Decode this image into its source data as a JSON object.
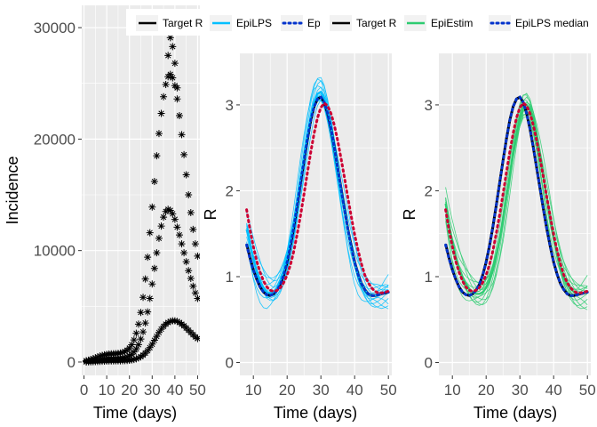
{
  "legend": [
    {
      "label": "Target R",
      "color": "#000000",
      "style": "solid"
    },
    {
      "label": "EpiLPS",
      "color": "#00bfff",
      "style": "solid"
    },
    {
      "label": "Ep",
      "color": "#0033cc",
      "style": "dotted"
    },
    {
      "label": "Target R",
      "color": "#000000",
      "style": "solid"
    },
    {
      "label": "EpiEstim",
      "color": "#2ecc71",
      "style": "solid"
    },
    {
      "label": "EpiLPS median",
      "color": "#0033cc",
      "style": "dotted"
    }
  ],
  "chart_data": [
    {
      "type": "scatter",
      "title": "",
      "xlabel": "Time (days)",
      "ylabel": "Incidence",
      "xlim": [
        -1,
        51
      ],
      "ylim": [
        -1200,
        32000
      ],
      "xticks": [
        0,
        10,
        20,
        30,
        40,
        50
      ],
      "xtick_labels": [
        "0",
        "10",
        "20",
        "30",
        "40",
        "50"
      ],
      "yticks": [
        0,
        10000,
        20000,
        30000
      ],
      "ytick_labels": [
        "0",
        "10000",
        "20000",
        "30000"
      ],
      "grid": true,
      "marker": "asterisk",
      "color": "#000000",
      "series": [
        {
          "x": [
            1,
            2,
            3,
            4,
            5,
            6,
            7,
            8,
            9,
            10,
            11,
            12,
            13,
            14,
            15,
            16,
            17,
            18,
            19,
            20,
            21,
            22,
            23,
            24,
            25,
            26,
            27,
            28,
            29,
            30,
            31,
            32,
            33,
            34,
            35,
            36,
            37,
            38,
            39,
            40,
            41,
            42,
            43,
            44,
            45,
            46,
            47,
            48,
            49,
            50
          ],
          "values": [
            10,
            15,
            20,
            28,
            35,
            45,
            55,
            65,
            75,
            85,
            92,
            98,
            100,
            102,
            104,
            108,
            115,
            125,
            140,
            160,
            190,
            230,
            290,
            370,
            480,
            620,
            800,
            1020,
            1290,
            1600,
            1950,
            2300,
            2650,
            2950,
            3200,
            3400,
            3550,
            3650,
            3700,
            3700,
            3650,
            3550,
            3400,
            3250,
            3050,
            2850,
            2650,
            2450,
            2250,
            2100
          ]
        },
        {
          "x": [
            1,
            2,
            3,
            4,
            5,
            6,
            7,
            8,
            9,
            10,
            11,
            12,
            13,
            14,
            15,
            16,
            17,
            18,
            19,
            20,
            21,
            22,
            23,
            24,
            25,
            26,
            27,
            28,
            29,
            30,
            31,
            32,
            33,
            34,
            35,
            36,
            37,
            38,
            39,
            40,
            41,
            42,
            43,
            44,
            45,
            46,
            47,
            48,
            49,
            50
          ],
          "values": [
            40,
            60,
            85,
            110,
            140,
            175,
            210,
            240,
            265,
            285,
            300,
            310,
            315,
            320,
            330,
            345,
            370,
            410,
            470,
            560,
            700,
            900,
            1180,
            1560,
            2060,
            2700,
            3500,
            4500,
            5700,
            7000,
            8400,
            9800,
            11100,
            12200,
            13000,
            13500,
            13700,
            13600,
            13300,
            12800,
            12100,
            11400,
            10600,
            9800,
            9000,
            8200,
            7500,
            6800,
            6200,
            5700
          ]
        },
        {
          "x": [
            1,
            2,
            3,
            4,
            5,
            6,
            7,
            8,
            9,
            10,
            11,
            12,
            13,
            14,
            15,
            16,
            17,
            18,
            19,
            20,
            21,
            22,
            23,
            24,
            25,
            26,
            27,
            28,
            29,
            30,
            31,
            32,
            33,
            34,
            35,
            36,
            37,
            38,
            39,
            40,
            41,
            42,
            43,
            44,
            45,
            46,
            47,
            48,
            49,
            50
          ],
          "values": [
            120,
            170,
            230,
            300,
            380,
            460,
            540,
            600,
            650,
            690,
            720,
            735,
            745,
            760,
            780,
            810,
            860,
            940,
            1060,
            1250,
            1550,
            1980,
            2580,
            3400,
            4450,
            5800,
            7450,
            9400,
            11600,
            13900,
            16200,
            18500,
            20500,
            22300,
            23800,
            24900,
            25600,
            25800,
            25500,
            24800,
            23600,
            22100,
            20400,
            18600,
            16800,
            15000,
            13400,
            11900,
            10600,
            9500
          ]
        },
        {
          "x": [
            37,
            38,
            39,
            40,
            41
          ],
          "values": [
            27500,
            29100,
            28300,
            26800,
            24600
          ]
        }
      ]
    },
    {
      "type": "line",
      "title": "",
      "xlabel": "Time (days)",
      "ylabel": "R",
      "xlim": [
        6,
        51
      ],
      "ylim": [
        -0.15,
        3.6
      ],
      "xticks": [
        10,
        20,
        30,
        40,
        50
      ],
      "xtick_labels": [
        "10",
        "20",
        "30",
        "40",
        "50"
      ],
      "yticks": [
        0,
        1,
        2,
        3
      ],
      "ytick_labels": [
        "0",
        "1",
        "2",
        "3"
      ],
      "grid": true,
      "x": [
        8,
        9,
        10,
        11,
        12,
        13,
        14,
        15,
        16,
        17,
        18,
        19,
        20,
        21,
        22,
        23,
        24,
        25,
        26,
        27,
        28,
        29,
        30,
        31,
        32,
        33,
        34,
        35,
        36,
        37,
        38,
        39,
        40,
        41,
        42,
        43,
        44,
        45,
        46,
        47,
        48,
        49,
        50
      ],
      "series": [
        {
          "name": "Target R",
          "color": "#000000",
          "style": "solid",
          "values": [
            1.38,
            1.22,
            1.08,
            0.97,
            0.88,
            0.82,
            0.79,
            0.78,
            0.8,
            0.84,
            0.91,
            1.02,
            1.17,
            1.36,
            1.58,
            1.83,
            2.09,
            2.35,
            2.6,
            2.82,
            2.98,
            3.07,
            3.09,
            3.03,
            2.9,
            2.72,
            2.5,
            2.26,
            2.02,
            1.78,
            1.55,
            1.35,
            1.17,
            1.03,
            0.92,
            0.85,
            0.8,
            0.78,
            0.78,
            0.79,
            0.8,
            0.81,
            0.82
          ]
        },
        {
          "name": "EpiLPS",
          "color": "#00bfff",
          "style": "solid",
          "values": [
            1.55,
            1.38,
            1.2,
            1.06,
            0.95,
            0.87,
            0.82,
            0.81,
            0.82,
            0.87,
            0.95,
            1.06,
            1.21,
            1.4,
            1.62,
            1.87,
            2.14,
            2.4,
            2.65,
            2.87,
            3.04,
            3.13,
            3.15,
            3.08,
            2.93,
            2.73,
            2.5,
            2.25,
            2.0,
            1.76,
            1.53,
            1.33,
            1.16,
            1.02,
            0.92,
            0.85,
            0.8,
            0.78,
            0.78,
            0.79,
            0.8,
            0.82,
            0.83
          ]
        },
        {
          "name": "EpiLPS median",
          "color": "#0033cc",
          "style": "dotted",
          "values": [
            1.37,
            1.21,
            1.08,
            0.97,
            0.88,
            0.82,
            0.79,
            0.78,
            0.8,
            0.84,
            0.91,
            1.02,
            1.17,
            1.36,
            1.58,
            1.83,
            2.09,
            2.35,
            2.6,
            2.82,
            2.98,
            3.07,
            3.09,
            3.03,
            2.9,
            2.72,
            2.5,
            2.26,
            2.02,
            1.78,
            1.55,
            1.35,
            1.17,
            1.03,
            0.92,
            0.85,
            0.8,
            0.78,
            0.78,
            0.79,
            0.8,
            0.81,
            0.82
          ]
        },
        {
          "color": "#cc0033",
          "style": "dotted",
          "values": [
            1.78,
            1.55,
            1.35,
            1.18,
            1.05,
            0.95,
            0.88,
            0.84,
            0.83,
            0.84,
            0.87,
            0.93,
            1.02,
            1.14,
            1.3,
            1.5,
            1.72,
            1.96,
            2.21,
            2.45,
            2.67,
            2.85,
            2.97,
            3.02,
            2.99,
            2.9,
            2.76,
            2.58,
            2.37,
            2.15,
            1.92,
            1.7,
            1.49,
            1.31,
            1.15,
            1.02,
            0.93,
            0.87,
            0.83,
            0.81,
            0.81,
            0.82,
            0.83
          ]
        }
      ]
    },
    {
      "type": "line",
      "title": "",
      "xlabel": "Time (days)",
      "ylabel": "R",
      "xlim": [
        6,
        51
      ],
      "ylim": [
        -0.15,
        3.6
      ],
      "xticks": [
        10,
        20,
        30,
        40,
        50
      ],
      "xtick_labels": [
        "10",
        "20",
        "30",
        "40",
        "50"
      ],
      "yticks": [
        0,
        1,
        2,
        3
      ],
      "ytick_labels": [
        "0",
        "1",
        "2",
        "3"
      ],
      "grid": true,
      "x": [
        8,
        9,
        10,
        11,
        12,
        13,
        14,
        15,
        16,
        17,
        18,
        19,
        20,
        21,
        22,
        23,
        24,
        25,
        26,
        27,
        28,
        29,
        30,
        31,
        32,
        33,
        34,
        35,
        36,
        37,
        38,
        39,
        40,
        41,
        42,
        43,
        44,
        45,
        46,
        47,
        48,
        49,
        50
      ],
      "series": [
        {
          "name": "Target R",
          "color": "#000000",
          "style": "solid",
          "values": [
            1.38,
            1.22,
            1.08,
            0.97,
            0.88,
            0.82,
            0.79,
            0.78,
            0.8,
            0.84,
            0.91,
            1.02,
            1.17,
            1.36,
            1.58,
            1.83,
            2.09,
            2.35,
            2.6,
            2.82,
            2.98,
            3.07,
            3.09,
            3.03,
            2.9,
            2.72,
            2.5,
            2.26,
            2.02,
            1.78,
            1.55,
            1.35,
            1.17,
            1.03,
            0.92,
            0.85,
            0.8,
            0.78,
            0.78,
            0.79,
            0.8,
            0.81,
            0.82
          ]
        },
        {
          "name": "EpiEstim",
          "color": "#2ecc71",
          "style": "solid",
          "values": [
            1.85,
            1.6,
            1.4,
            1.24,
            1.1,
            1.0,
            0.92,
            0.86,
            0.82,
            0.8,
            0.8,
            0.82,
            0.87,
            0.95,
            1.07,
            1.23,
            1.43,
            1.66,
            1.92,
            2.18,
            2.44,
            2.67,
            2.85,
            2.97,
            3.0,
            2.95,
            2.82,
            2.63,
            2.4,
            2.16,
            1.91,
            1.67,
            1.45,
            1.27,
            1.12,
            1.0,
            0.92,
            0.86,
            0.82,
            0.8,
            0.8,
            0.81,
            0.82
          ]
        },
        {
          "name": "EpiLPS median",
          "color": "#0033cc",
          "style": "dotted",
          "values": [
            1.37,
            1.21,
            1.08,
            0.97,
            0.88,
            0.82,
            0.79,
            0.78,
            0.8,
            0.84,
            0.91,
            1.02,
            1.17,
            1.36,
            1.58,
            1.83,
            2.09,
            2.35,
            2.6,
            2.82,
            2.98,
            3.07,
            3.09,
            3.03,
            2.9,
            2.72,
            2.5,
            2.26,
            2.02,
            1.78,
            1.55,
            1.35,
            1.17,
            1.03,
            0.92,
            0.85,
            0.8,
            0.78,
            0.78,
            0.79,
            0.8,
            0.81,
            0.82
          ]
        },
        {
          "color": "#cc0033",
          "style": "dotted",
          "values": [
            1.78,
            1.55,
            1.35,
            1.18,
            1.05,
            0.95,
            0.88,
            0.84,
            0.83,
            0.84,
            0.87,
            0.93,
            1.02,
            1.14,
            1.3,
            1.5,
            1.72,
            1.96,
            2.21,
            2.45,
            2.67,
            2.85,
            2.97,
            3.02,
            2.99,
            2.9,
            2.76,
            2.58,
            2.37,
            2.15,
            1.92,
            1.7,
            1.49,
            1.31,
            1.15,
            1.02,
            0.93,
            0.87,
            0.83,
            0.81,
            0.81,
            0.82,
            0.83
          ]
        }
      ]
    }
  ]
}
